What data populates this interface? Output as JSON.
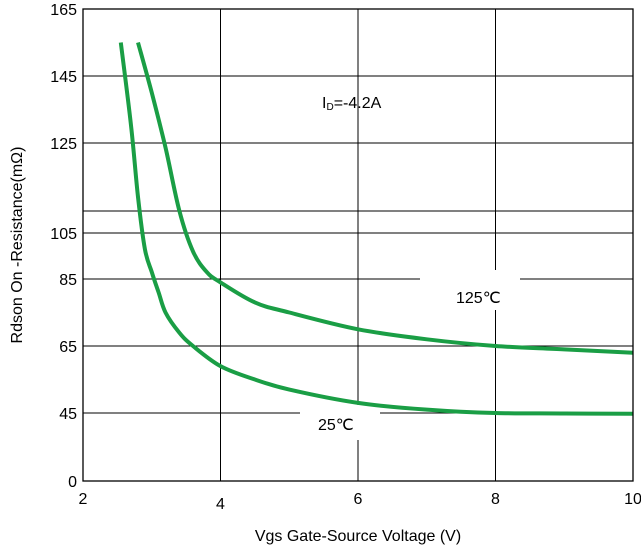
{
  "chart_data": {
    "type": "line",
    "title": "",
    "xlabel": "Vgs Gate-Source Voltage (V)",
    "ylabel": "Rdson On -Resistance(mΩ)",
    "grid": true,
    "x_ticks": [
      "2",
      "4",
      "6",
      "8",
      "10"
    ],
    "x_tick_values": [
      2,
      4,
      6,
      8,
      10
    ],
    "y_ticks": [
      "0",
      "45",
      "65",
      "85",
      "105",
      "125",
      "145",
      "165"
    ],
    "y_tick_values": [
      0,
      45,
      65,
      85,
      105,
      125,
      145,
      165
    ],
    "xlim": [
      2,
      10
    ],
    "ylim": [
      0,
      165
    ],
    "series": [
      {
        "name": "125℃",
        "color": "#1a9e45",
        "x": [
          2.8,
          3.0,
          3.2,
          3.4,
          3.6,
          3.8,
          4.0,
          4.5,
          5.0,
          6.0,
          7.0,
          8.0,
          9.0,
          10.0
        ],
        "y": [
          155,
          140,
          124,
          110,
          97,
          88,
          84,
          78,
          75,
          70,
          67,
          65,
          64,
          63
        ]
      },
      {
        "name": "25℃",
        "color": "#1a9e45",
        "x": [
          2.55,
          2.7,
          2.8,
          2.9,
          3.0,
          3.1,
          3.2,
          3.4,
          3.6,
          4.0,
          4.5,
          5.0,
          6.0,
          7.0,
          8.0,
          9.0,
          10.0
        ],
        "y": [
          155,
          130,
          113,
          98,
          88,
          81,
          75,
          69,
          65,
          59,
          55,
          52,
          48,
          46,
          45,
          44.7,
          44.5
        ]
      }
    ],
    "annotations": [
      {
        "id": "id-label",
        "prefix": "I",
        "subscript": "D",
        "value": "=-4.2A"
      },
      {
        "id": "label-125",
        "text": "125℃"
      },
      {
        "id": "label-25",
        "text": "25℃"
      }
    ]
  }
}
